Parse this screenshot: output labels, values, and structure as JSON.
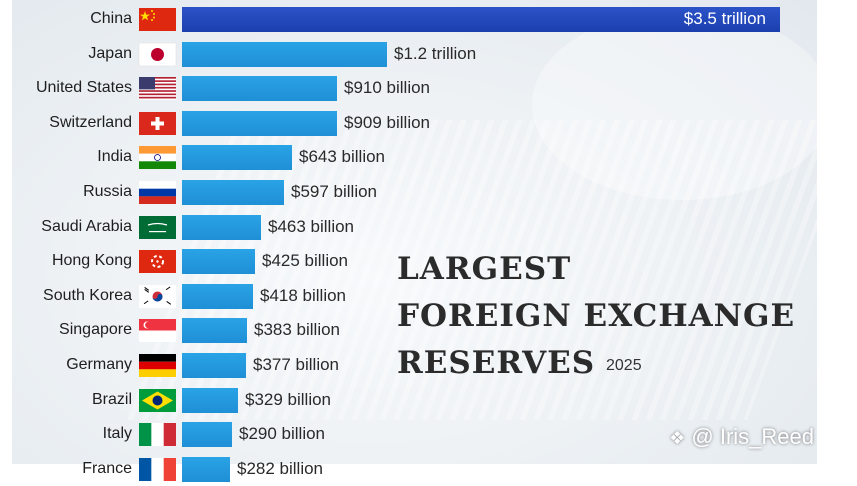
{
  "chart_data": {
    "type": "bar",
    "orientation": "horizontal",
    "title_lines": [
      "LARGEST",
      "FOREIGN EXCHANGE",
      "RESERVES"
    ],
    "subtitle": "2025",
    "unit": "USD billion",
    "categories": [
      "China",
      "Japan",
      "United States",
      "Switzerland",
      "India",
      "Russia",
      "Saudi Arabia",
      "Hong Kong",
      "South Korea",
      "Singapore",
      "Germany",
      "Brazil",
      "Italy",
      "France"
    ],
    "values": [
      3500,
      1200,
      910,
      909,
      643,
      597,
      463,
      425,
      418,
      383,
      377,
      329,
      290,
      282
    ],
    "labels": [
      "$3.5 trillion",
      "$1.2 trillion",
      "$910 billion",
      "$909 billion",
      "$643 billion",
      "$597 billion",
      "$463 billion",
      "$425 billion",
      "$418 billion",
      "$383 billion",
      "$377 billion",
      "$329 billion",
      "$290 billion",
      "$282 billion"
    ],
    "flags": [
      "china-flag-icon",
      "japan-flag-icon",
      "united-states-flag-icon",
      "switzerland-flag-icon",
      "india-flag-icon",
      "russia-flag-icon",
      "saudi-arabia-flag-icon",
      "hong-kong-flag-icon",
      "south-korea-flag-icon",
      "singapore-flag-icon",
      "germany-flag-icon",
      "brazil-flag-icon",
      "italy-flag-icon",
      "france-flag-icon"
    ],
    "colors": {
      "top_bar": "#2347bd",
      "bar": "#2299e0"
    }
  },
  "watermark": {
    "text": "@ Iris_Reed",
    "icon": "diamond-logo-icon"
  }
}
